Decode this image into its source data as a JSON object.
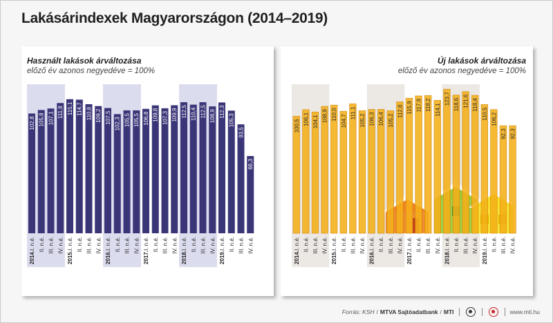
{
  "title": "Lakásárindexek Magyarországon (2014–2019)",
  "colors": {
    "used_bar": "#3a3577",
    "new_bar": "#f5b019",
    "new_bar_edge": "#d48d0a",
    "band": "#dcdcef",
    "band_new": "#ece8e4",
    "house_orange": "#f08227",
    "house_green": "#9ccb3b",
    "house_yellow": "#f7e22a"
  },
  "footer": {
    "source": "Forrás: KSH",
    "agency": "MTVA Sajtóadatbank",
    "mti": "MTI",
    "url": "www.mti.hu"
  },
  "chart_data": [
    {
      "type": "bar",
      "title": "Használt lakások árváltozása",
      "subtitle": "előző év azonos negyedéve = 100%",
      "categories": [
        "2014.I. n.é.",
        "II. n.é.",
        "III. n.é.",
        "IV. n.é.",
        "2015.I. n.é.",
        "II. n.é.",
        "III. n.é.",
        "IV. n.é.",
        "2016.I. n.é.",
        "II. n.é.",
        "III. n.é.",
        "IV. n.é.",
        "2017.I. n.é.",
        "II. n.é.",
        "III. n.é.",
        "IV. n.é.",
        "2018.I. n.é.",
        "II. n.é.",
        "III. n.é.",
        "IV. n.é.",
        "2019.I. n.é.",
        "II. n.é.",
        "III. n.é.",
        "IV. n.é."
      ],
      "values": [
        102.8,
        105.8,
        107.1,
        111.8,
        115.1,
        114.7,
        110.8,
        109.2,
        107.5,
        102.3,
        105.5,
        105.5,
        106.8,
        109.8,
        107.3,
        109.9,
        112.5,
        110.4,
        112.5,
        108.9,
        112.3,
        105.3,
        93.5,
        66.3
      ],
      "value_labels": [
        "102,8",
        "105,8",
        "107,1",
        "111,8",
        "115,1",
        "114,7",
        "110,8",
        "109,2",
        "107,5",
        "102,3",
        "105,5",
        "105,5",
        "106,8",
        "109,8",
        "107,3",
        "109,9",
        "112,5",
        "110,4",
        "112,5",
        "108,9",
        "112,3",
        "105,3",
        "93,5",
        "66,3"
      ],
      "highlighted_years": [
        "2014",
        "2016",
        "2018"
      ],
      "legend": "none",
      "grid": false
    },
    {
      "type": "bar",
      "title": "Új lakások árváltozása",
      "subtitle": "előző év azonos negyedéve = 100%",
      "categories": [
        "2014.I. n.é.",
        "II. n.é.",
        "III. n.é.",
        "IV. n.é.",
        "2015.I. n.é.",
        "II. n.é.",
        "III. n.é.",
        "IV. n.é.",
        "2016.I. n.é.",
        "II. n.é.",
        "III. n.é.",
        "IV. n.é.",
        "2017.I. n.é.",
        "II. n.é.",
        "III. n.é.",
        "IV. n.é.",
        "2018.I. n.é.",
        "II. n.é.",
        "III. n.é.",
        "IV. n.é.",
        "2019.I. n.é.",
        "II. n.é.",
        "III. n.é.",
        "IV. n.é."
      ],
      "values": [
        100.5,
        106.1,
        104.1,
        108.9,
        110.0,
        104.7,
        111.1,
        105.2,
        106.3,
        106.4,
        105.2,
        112.8,
        115.9,
        117.9,
        118.2,
        114.1,
        123.7,
        118.6,
        121.6,
        118.4,
        110.5,
        106.2,
        92.3,
        92.3
      ],
      "value_labels": [
        "100,5",
        "106,1",
        "104,1",
        "108,9",
        "110,0",
        "104,7",
        "111,1",
        "105,2",
        "106,3",
        "106,4",
        "105,2",
        "112,8",
        "115,9",
        "117,9",
        "118,2",
        "114,1",
        "123,7",
        "118,6",
        "121,6",
        "118,4",
        "110,5",
        "106,2",
        "92,3",
        "92,3"
      ],
      "highlighted_years": [
        "2014",
        "2016",
        "2018"
      ],
      "legend": "none",
      "grid": false
    }
  ]
}
